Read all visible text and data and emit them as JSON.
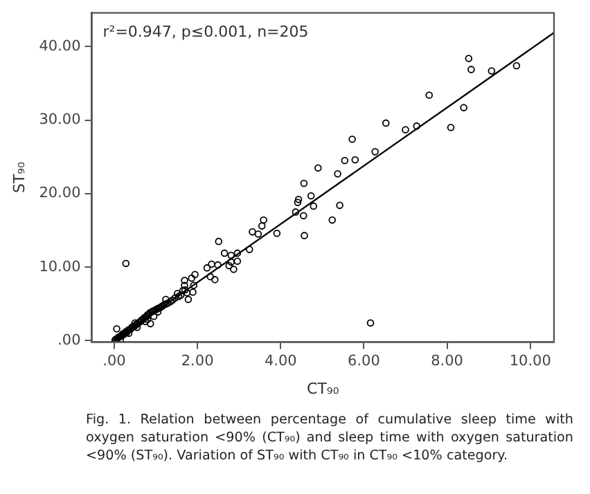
{
  "chart_data": {
    "type": "scatter",
    "xlabel": "CT₉₀",
    "ylabel": "ST₉₀",
    "annotations": [
      "r²=0.947, p≤0.001, n=205",
      "Fig. 1. Relation between percentage of cumulative sleep time with oxygen saturation <90% (CT₉₀) and sleep time with oxygen saturation <90% (ST₉₀). Variation of ST₉₀ with CT₉₀ in CT₉₀ <10% category."
    ],
    "xlim": [
      -0.54,
      10.57
    ],
    "ylim": [
      -0.2,
      44.6
    ],
    "xticks": [
      {
        "value": 0,
        "label": ".00"
      },
      {
        "value": 2,
        "label": "2.00"
      },
      {
        "value": 4,
        "label": "4.00"
      },
      {
        "value": 6,
        "label": "6.00"
      },
      {
        "value": 8,
        "label": "8.00"
      },
      {
        "value": 10,
        "label": "10.00"
      }
    ],
    "yticks": [
      {
        "value": 0,
        "label": ".00"
      },
      {
        "value": 10,
        "label": "10.00"
      },
      {
        "value": 20,
        "label": "20.00"
      },
      {
        "value": 30,
        "label": "30.00"
      },
      {
        "value": 40,
        "label": "40.00"
      }
    ],
    "grid": false,
    "legend": false,
    "marker": "circle",
    "series": [
      {
        "color": "#000000",
        "x": [
          8.52,
          8.58,
          9.07,
          9.67,
          7.57,
          8.4,
          8.09,
          6.53,
          7.0,
          7.27,
          5.72,
          5.54,
          5.79,
          6.27,
          5.37,
          4.9,
          4.56,
          5.42,
          5.24,
          6.16,
          4.73,
          4.43,
          4.41,
          4.36,
          4.79,
          4.55,
          4.57,
          3.59,
          3.55,
          3.32,
          3.46,
          3.91,
          3.25,
          2.51,
          2.96,
          2.65,
          2.81,
          2.81,
          2.96,
          2.87,
          2.76,
          2.49,
          2.34,
          2.23,
          2.42,
          2.31,
          0.28,
          1.94,
          1.86,
          1.69,
          1.69,
          1.91,
          1.75,
          1.89,
          1.52,
          1.78,
          1.46,
          1.29,
          1.24,
          0.87,
          0.06,
          0.02,
          0.03,
          0.05,
          0.08,
          0.1,
          0.12,
          0.15,
          0.18,
          0.2,
          0.22,
          0.25,
          0.28,
          0.3,
          0.33,
          0.36,
          0.4,
          0.42,
          0.45,
          0.5,
          0.53,
          0.56,
          0.6,
          0.63,
          0.66,
          0.7,
          0.72,
          0.75,
          0.78,
          0.8,
          0.83,
          0.86,
          0.9,
          0.93,
          0.96,
          1.0,
          1.03,
          1.06,
          1.1,
          1.13,
          1.16,
          1.2,
          1.25,
          1.35,
          1.4,
          1.55,
          1.6,
          1.65,
          1.7,
          0.15,
          0.35,
          0.55,
          0.75,
          0.95,
          0.5,
          0.8,
          1.05
        ],
        "values": [
          38.4,
          36.9,
          36.7,
          37.4,
          33.4,
          31.7,
          29.0,
          29.6,
          28.7,
          29.2,
          27.4,
          24.5,
          24.6,
          25.7,
          22.7,
          23.5,
          21.4,
          18.4,
          16.4,
          2.4,
          19.7,
          19.2,
          18.8,
          17.5,
          18.3,
          17.0,
          14.3,
          16.4,
          15.6,
          14.8,
          14.5,
          14.6,
          12.4,
          13.5,
          11.9,
          11.9,
          11.6,
          10.7,
          10.8,
          9.7,
          10.2,
          10.3,
          10.4,
          9.9,
          8.3,
          8.7,
          10.5,
          9.0,
          8.5,
          8.2,
          7.5,
          7.5,
          6.5,
          6.6,
          6.4,
          5.6,
          5.8,
          5.1,
          5.6,
          2.3,
          1.6,
          0.05,
          0.15,
          0.2,
          0.3,
          0.45,
          0.5,
          0.6,
          0.7,
          0.9,
          0.8,
          1.0,
          1.2,
          1.1,
          1.4,
          1.5,
          1.6,
          1.8,
          1.9,
          2.0,
          2.2,
          2.3,
          2.5,
          2.6,
          2.8,
          2.9,
          3.1,
          3.2,
          3.3,
          3.5,
          3.6,
          3.8,
          3.9,
          4.0,
          4.1,
          4.2,
          4.3,
          4.4,
          4.5,
          4.6,
          4.7,
          4.9,
          5.0,
          5.3,
          5.5,
          6.0,
          6.2,
          6.8,
          6.9,
          0.2,
          1.0,
          1.8,
          2.6,
          3.3,
          2.4,
          2.9,
          3.9
        ]
      },
      {
        "type": "line",
        "marker": "none",
        "color": "#000000",
        "x": [
          0,
          10.57
        ],
        "values": [
          0,
          41.9
        ]
      }
    ]
  }
}
